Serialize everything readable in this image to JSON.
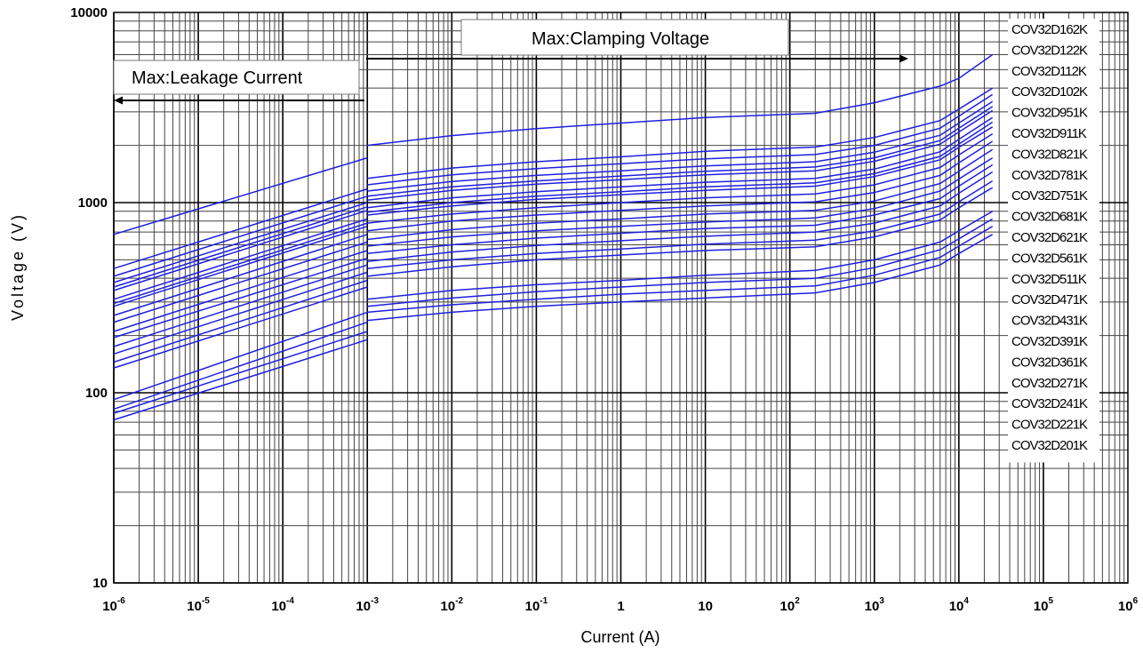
{
  "chart_data": {
    "type": "line",
    "xlabel": "Current (A)",
    "ylabel": "Voltage (V)",
    "x_scale": "log",
    "y_scale": "log",
    "xlim": [
      1e-06,
      1000000.0
    ],
    "ylim": [
      10,
      10000
    ],
    "grid": true,
    "legend_position": "right",
    "x_tick_labels": [
      {
        "base": "10",
        "exp": "-6"
      },
      {
        "base": "10",
        "exp": "-5"
      },
      {
        "base": "10",
        "exp": "-4"
      },
      {
        "base": "10",
        "exp": "-3"
      },
      {
        "base": "10",
        "exp": "-2"
      },
      {
        "base": "10",
        "exp": "-1"
      },
      {
        "base": "1",
        "exp": ""
      },
      {
        "base": "10",
        "exp": ""
      },
      {
        "base": "10",
        "exp": "2"
      },
      {
        "base": "10",
        "exp": "3"
      },
      {
        "base": "10",
        "exp": "4"
      },
      {
        "base": "10",
        "exp": "5"
      },
      {
        "base": "10",
        "exp": "6"
      }
    ],
    "y_tick_labels": [
      "10",
      "100",
      "1000",
      "10000"
    ],
    "line_color": "#1f1fe0",
    "annotations": {
      "leakage": "Max:Leakage Current",
      "clamping": "Max:Clamping Voltage"
    },
    "series": [
      {
        "name": "COV32D162K",
        "leakage": [
          [
            1e-06,
            680
          ],
          [
            0.001,
            1720
          ]
        ],
        "clamping": [
          [
            0.001,
            2000
          ],
          [
            0.01,
            2250
          ],
          [
            0.1,
            2450
          ],
          [
            1,
            2620
          ],
          [
            10,
            2800
          ],
          [
            200,
            2950
          ],
          [
            1000,
            3350
          ],
          [
            6000,
            4100
          ],
          [
            10000,
            4500
          ],
          [
            25000,
            6000
          ]
        ]
      },
      {
        "name": "COV32D122K",
        "leakage": [
          [
            1e-06,
            450
          ],
          [
            0.001,
            1180
          ]
        ],
        "clamping": [
          [
            0.001,
            1340
          ],
          [
            0.01,
            1520
          ],
          [
            0.1,
            1640
          ],
          [
            1,
            1740
          ],
          [
            10,
            1860
          ],
          [
            200,
            1960
          ],
          [
            1000,
            2200
          ],
          [
            6000,
            2700
          ],
          [
            10000,
            3100
          ],
          [
            25000,
            4000
          ]
        ]
      },
      {
        "name": "COV32D112K",
        "leakage": [
          [
            1e-06,
            410
          ],
          [
            0.001,
            1080
          ]
        ],
        "clamping": [
          [
            0.001,
            1240
          ],
          [
            0.01,
            1400
          ],
          [
            0.1,
            1510
          ],
          [
            1,
            1600
          ],
          [
            10,
            1700
          ],
          [
            200,
            1790
          ],
          [
            1000,
            2000
          ],
          [
            6000,
            2460
          ],
          [
            10000,
            2850
          ],
          [
            25000,
            3700
          ]
        ]
      },
      {
        "name": "COV32D102K",
        "leakage": [
          [
            1e-06,
            380
          ],
          [
            0.001,
            1000
          ]
        ],
        "clamping": [
          [
            0.001,
            1150
          ],
          [
            0.01,
            1290
          ],
          [
            0.1,
            1390
          ],
          [
            1,
            1470
          ],
          [
            10,
            1560
          ],
          [
            200,
            1640
          ],
          [
            1000,
            1840
          ],
          [
            6000,
            2260
          ],
          [
            10000,
            2620
          ],
          [
            25000,
            3400
          ]
        ]
      },
      {
        "name": "COV32D951K",
        "leakage": [
          [
            1e-06,
            360
          ],
          [
            0.001,
            950
          ]
        ],
        "clamping": [
          [
            0.001,
            1080
          ],
          [
            0.01,
            1210
          ],
          [
            0.1,
            1300
          ],
          [
            1,
            1380
          ],
          [
            10,
            1460
          ],
          [
            200,
            1540
          ],
          [
            1000,
            1720
          ],
          [
            6000,
            2120
          ],
          [
            10000,
            2460
          ],
          [
            25000,
            3200
          ]
        ]
      },
      {
        "name": "COV32D911K",
        "leakage": [
          [
            1e-06,
            345
          ],
          [
            0.001,
            910
          ]
        ],
        "clamping": [
          [
            0.001,
            1030
          ],
          [
            0.01,
            1160
          ],
          [
            0.1,
            1250
          ],
          [
            1,
            1320
          ],
          [
            10,
            1400
          ],
          [
            200,
            1470
          ],
          [
            1000,
            1650
          ],
          [
            6000,
            2030
          ],
          [
            10000,
            2350
          ],
          [
            25000,
            3050
          ]
        ]
      },
      {
        "name": "COV32D821K",
        "leakage": [
          [
            1e-06,
            310
          ],
          [
            0.001,
            820
          ]
        ],
        "clamping": [
          [
            0.001,
            940
          ],
          [
            0.01,
            1060
          ],
          [
            0.1,
            1140
          ],
          [
            1,
            1210
          ],
          [
            10,
            1280
          ],
          [
            200,
            1340
          ],
          [
            1000,
            1500
          ],
          [
            6000,
            1850
          ],
          [
            10000,
            2150
          ],
          [
            25000,
            2800
          ]
        ]
      },
      {
        "name": "COV32D781K",
        "leakage": [
          [
            1e-06,
            295
          ],
          [
            0.001,
            780
          ]
        ],
        "clamping": [
          [
            0.001,
            890
          ],
          [
            0.01,
            1000
          ],
          [
            0.1,
            1080
          ],
          [
            1,
            1140
          ],
          [
            10,
            1210
          ],
          [
            200,
            1270
          ],
          [
            1000,
            1420
          ],
          [
            6000,
            1750
          ],
          [
            10000,
            2030
          ],
          [
            25000,
            2650
          ]
        ]
      },
      {
        "name": "COV32D751K",
        "leakage": [
          [
            1e-06,
            285
          ],
          [
            0.001,
            750
          ]
        ],
        "clamping": [
          [
            0.001,
            860
          ],
          [
            0.01,
            960
          ],
          [
            0.1,
            1040
          ],
          [
            1,
            1100
          ],
          [
            10,
            1160
          ],
          [
            200,
            1220
          ],
          [
            1000,
            1370
          ],
          [
            6000,
            1680
          ],
          [
            10000,
            1950
          ],
          [
            25000,
            2500
          ]
        ]
      },
      {
        "name": "COV32D681K",
        "leakage": [
          [
            1e-06,
            255
          ],
          [
            0.001,
            680
          ]
        ],
        "clamping": [
          [
            0.001,
            780
          ],
          [
            0.01,
            870
          ],
          [
            0.1,
            940
          ],
          [
            1,
            1000
          ],
          [
            10,
            1060
          ],
          [
            200,
            1110
          ],
          [
            1000,
            1240
          ],
          [
            6000,
            1530
          ],
          [
            10000,
            1780
          ],
          [
            25000,
            2300
          ]
        ]
      },
      {
        "name": "COV32D621K",
        "leakage": [
          [
            1e-06,
            235
          ],
          [
            0.001,
            620
          ]
        ],
        "clamping": [
          [
            0.001,
            710
          ],
          [
            0.01,
            800
          ],
          [
            0.1,
            860
          ],
          [
            1,
            910
          ],
          [
            10,
            960
          ],
          [
            200,
            1010
          ],
          [
            1000,
            1130
          ],
          [
            6000,
            1390
          ],
          [
            10000,
            1620
          ],
          [
            25000,
            2100
          ]
        ]
      },
      {
        "name": "COV32D561K",
        "leakage": [
          [
            1e-06,
            210
          ],
          [
            0.001,
            560
          ]
        ],
        "clamping": [
          [
            0.001,
            640
          ],
          [
            0.01,
            720
          ],
          [
            0.1,
            780
          ],
          [
            1,
            820
          ],
          [
            10,
            870
          ],
          [
            200,
            910
          ],
          [
            1000,
            1020
          ],
          [
            6000,
            1260
          ],
          [
            10000,
            1460
          ],
          [
            25000,
            1900
          ]
        ]
      },
      {
        "name": "COV32D511K",
        "leakage": [
          [
            1e-06,
            195
          ],
          [
            0.001,
            510
          ]
        ],
        "clamping": [
          [
            0.001,
            590
          ],
          [
            0.01,
            660
          ],
          [
            0.1,
            710
          ],
          [
            1,
            750
          ],
          [
            10,
            790
          ],
          [
            200,
            830
          ],
          [
            1000,
            930
          ],
          [
            6000,
            1150
          ],
          [
            10000,
            1330
          ],
          [
            25000,
            1720
          ]
        ]
      },
      {
        "name": "COV32D471K",
        "leakage": [
          [
            1e-06,
            175
          ],
          [
            0.001,
            470
          ]
        ],
        "clamping": [
          [
            0.001,
            540
          ],
          [
            0.01,
            600
          ],
          [
            0.1,
            650
          ],
          [
            1,
            690
          ],
          [
            10,
            730
          ],
          [
            200,
            760
          ],
          [
            1000,
            860
          ],
          [
            6000,
            1050
          ],
          [
            10000,
            1220
          ],
          [
            25000,
            1580
          ]
        ]
      },
      {
        "name": "COV32D431K",
        "leakage": [
          [
            1e-06,
            160
          ],
          [
            0.001,
            430
          ]
        ],
        "clamping": [
          [
            0.001,
            490
          ],
          [
            0.01,
            550
          ],
          [
            0.1,
            595
          ],
          [
            1,
            630
          ],
          [
            10,
            665
          ],
          [
            200,
            700
          ],
          [
            1000,
            780
          ],
          [
            6000,
            960
          ],
          [
            10000,
            1120
          ],
          [
            25000,
            1450
          ]
        ]
      },
      {
        "name": "COV32D391K",
        "leakage": [
          [
            1e-06,
            145
          ],
          [
            0.001,
            390
          ]
        ],
        "clamping": [
          [
            0.001,
            450
          ],
          [
            0.01,
            500
          ],
          [
            0.1,
            540
          ],
          [
            1,
            570
          ],
          [
            10,
            605
          ],
          [
            200,
            635
          ],
          [
            1000,
            710
          ],
          [
            6000,
            870
          ],
          [
            10000,
            1010
          ],
          [
            25000,
            1300
          ]
        ]
      },
      {
        "name": "COV32D361K",
        "leakage": [
          [
            1e-06,
            135
          ],
          [
            0.001,
            360
          ]
        ],
        "clamping": [
          [
            0.001,
            410
          ],
          [
            0.01,
            460
          ],
          [
            0.1,
            500
          ],
          [
            1,
            530
          ],
          [
            10,
            560
          ],
          [
            200,
            585
          ],
          [
            1000,
            660
          ],
          [
            6000,
            810
          ],
          [
            10000,
            940
          ],
          [
            25000,
            1200
          ]
        ]
      },
      {
        "name": "COV32D271K",
        "leakage": [
          [
            1e-06,
            92
          ],
          [
            0.001,
            265
          ]
        ],
        "clamping": [
          [
            0.001,
            310
          ],
          [
            0.01,
            345
          ],
          [
            0.1,
            370
          ],
          [
            1,
            390
          ],
          [
            10,
            415
          ],
          [
            200,
            440
          ],
          [
            1000,
            500
          ],
          [
            6000,
            620
          ],
          [
            10000,
            710
          ],
          [
            25000,
            900
          ]
        ]
      },
      {
        "name": "COV32D241K",
        "leakage": [
          [
            1e-06,
            82
          ],
          [
            0.001,
            235
          ]
        ],
        "clamping": [
          [
            0.001,
            285
          ],
          [
            0.01,
            315
          ],
          [
            0.1,
            340
          ],
          [
            1,
            360
          ],
          [
            10,
            380
          ],
          [
            200,
            400
          ],
          [
            1000,
            455
          ],
          [
            6000,
            565
          ],
          [
            10000,
            645
          ],
          [
            25000,
            820
          ]
        ]
      },
      {
        "name": "COV32D221K",
        "leakage": [
          [
            1e-06,
            78
          ],
          [
            0.001,
            210
          ]
        ],
        "clamping": [
          [
            0.001,
            265
          ],
          [
            0.01,
            290
          ],
          [
            0.1,
            310
          ],
          [
            1,
            330
          ],
          [
            10,
            345
          ],
          [
            200,
            365
          ],
          [
            1000,
            415
          ],
          [
            6000,
            515
          ],
          [
            10000,
            590
          ],
          [
            25000,
            750
          ]
        ]
      },
      {
        "name": "COV32D201K",
        "leakage": [
          [
            1e-06,
            72
          ],
          [
            0.001,
            190
          ]
        ],
        "clamping": [
          [
            0.001,
            240
          ],
          [
            0.01,
            265
          ],
          [
            0.1,
            285
          ],
          [
            1,
            300
          ],
          [
            10,
            315
          ],
          [
            200,
            335
          ],
          [
            1000,
            380
          ],
          [
            6000,
            470
          ],
          [
            10000,
            540
          ],
          [
            25000,
            680
          ]
        ]
      }
    ]
  }
}
